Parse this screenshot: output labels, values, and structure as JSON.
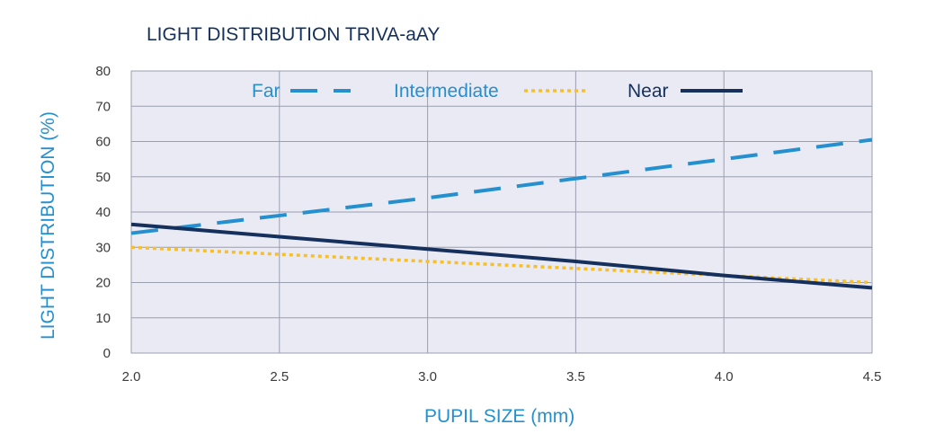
{
  "chart_data": {
    "type": "line",
    "title": "LIGHT DISTRIBUTION TRIVA-aAY",
    "xlabel": "PUPIL SIZE (mm)",
    "ylabel": "LIGHT DISTRIBUTION (%)",
    "xlim": [
      2.0,
      4.5
    ],
    "ylim": [
      0,
      80
    ],
    "x_ticks": [
      "2.0",
      "2.5",
      "3.0",
      "3.5",
      "4.0",
      "4.5"
    ],
    "y_ticks": [
      "0",
      "10",
      "20",
      "30",
      "40",
      "50",
      "60",
      "70",
      "80"
    ],
    "grid": true,
    "legend_position": "top",
    "x": [
      2.0,
      2.5,
      3.0,
      3.5,
      4.0,
      4.5
    ],
    "series": [
      {
        "name": "Far",
        "values": [
          34,
          39,
          44,
          49.5,
          55,
          60.5
        ],
        "color": "#2590d0",
        "style": "dashed"
      },
      {
        "name": "Intermediate",
        "values": [
          30,
          28,
          26,
          24,
          22,
          20
        ],
        "color": "#f5c02c",
        "style": "dotted"
      },
      {
        "name": "Near",
        "values": [
          36.5,
          33,
          29.5,
          26,
          22,
          18.5
        ],
        "color": "#15305c",
        "style": "solid"
      }
    ],
    "plot_background": "#e9eaf3",
    "gridline_color": "#9a9fb0"
  }
}
